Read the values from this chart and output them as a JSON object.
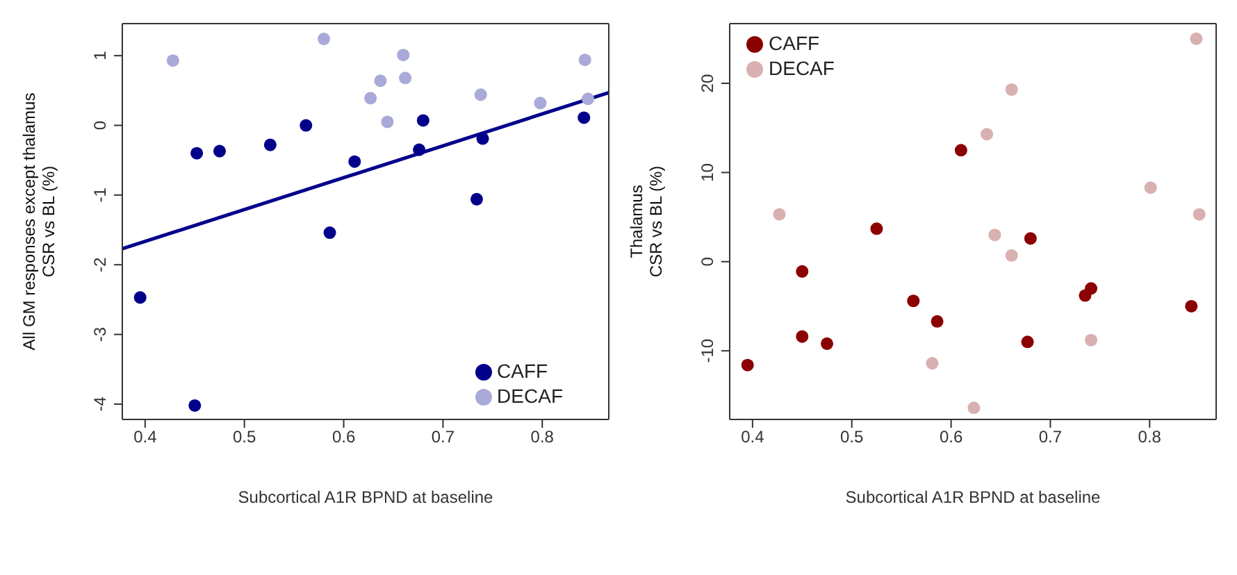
{
  "chart_data": [
    {
      "type": "scatter",
      "xlabel": "Subcortical A1R BPND at baseline",
      "ylabel": "All GM responses except thalamus\nCSR vs BL (%)",
      "xlim": [
        0.377,
        0.867
      ],
      "ylim": [
        -4.22,
        1.46
      ],
      "xticks": [
        0.4,
        0.5,
        0.6,
        0.7,
        0.8
      ],
      "yticks": [
        -4,
        -3,
        -2,
        -1,
        0,
        1
      ],
      "legend": "bottom right",
      "marker": "circle",
      "series": [
        {
          "name": "CAFF",
          "color": "#00008b",
          "x": [
            0.395,
            0.45,
            0.452,
            0.475,
            0.526,
            0.562,
            0.586,
            0.611,
            0.676,
            0.68,
            0.734,
            0.74,
            0.842
          ],
          "values": [
            -2.47,
            -4.02,
            -0.4,
            -0.37,
            -0.28,
            0.0,
            -1.54,
            -0.52,
            -0.35,
            0.07,
            -1.06,
            -0.19,
            0.11
          ]
        },
        {
          "name": "DECAF",
          "color": "#aaaad8",
          "x": [
            0.428,
            0.58,
            0.627,
            0.637,
            0.644,
            0.66,
            0.662,
            0.738,
            0.798,
            0.843,
            0.846
          ],
          "values": [
            0.93,
            1.24,
            0.39,
            0.64,
            0.05,
            1.01,
            0.68,
            0.44,
            0.32,
            0.94,
            0.38
          ]
        },
        {
          "type": "line",
          "marker": "none",
          "color": "#00008b",
          "x": [
            0.377,
            0.867
          ],
          "values": [
            -1.77,
            0.47
          ]
        }
      ]
    },
    {
      "type": "scatter",
      "xlabel": "Subcortical A1R BPND at baseline",
      "ylabel": "Thalamus\nCSR vs BL (%)",
      "xlim": [
        0.377,
        0.867
      ],
      "ylim": [
        -17.7,
        26.7
      ],
      "xticks": [
        0.4,
        0.5,
        0.6,
        0.7,
        0.8
      ],
      "yticks": [
        -10,
        0,
        10,
        20
      ],
      "legend": "top left",
      "marker": "circle",
      "series": [
        {
          "name": "CAFF",
          "color": "#8b0000",
          "x": [
            0.395,
            0.45,
            0.45,
            0.475,
            0.525,
            0.562,
            0.586,
            0.61,
            0.677,
            0.68,
            0.735,
            0.741,
            0.842
          ],
          "values": [
            -11.6,
            -1.1,
            -8.4,
            -9.2,
            3.7,
            -4.4,
            -6.7,
            12.5,
            -9.0,
            2.6,
            -3.8,
            -3.0,
            -5.0
          ]
        },
        {
          "name": "DECAF",
          "color": "#d9b0b0",
          "x": [
            0.427,
            0.581,
            0.623,
            0.636,
            0.644,
            0.661,
            0.661,
            0.741,
            0.801,
            0.847,
            0.85
          ],
          "values": [
            5.3,
            -11.4,
            -16.4,
            14.3,
            3.0,
            19.3,
            0.7,
            -8.8,
            8.3,
            25.0,
            5.3
          ]
        }
      ]
    }
  ]
}
